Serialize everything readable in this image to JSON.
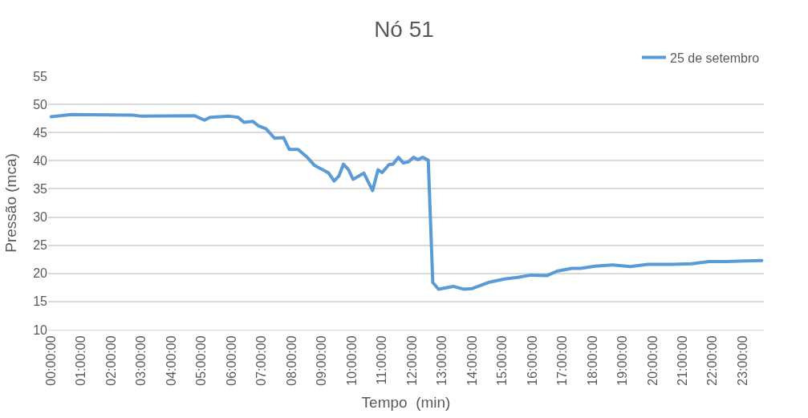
{
  "chart_data": {
    "type": "line",
    "title": "Nó 51",
    "xlabel": "Tempo  (min)",
    "ylabel": "Pressão (mca)",
    "x": [
      0,
      0.67,
      2.71,
      3.01,
      4.76,
      5.1,
      5.28,
      5.93,
      6.22,
      6.41,
      6.7,
      6.89,
      7.14,
      7.43,
      7.73,
      7.92,
      8.21,
      8.5,
      8.75,
      9.14,
      9.23,
      9.41,
      9.57,
      9.72,
      9.89,
      10.04,
      10.4,
      10.69,
      10.87,
      11.01,
      11.23,
      11.37,
      11.55,
      11.71,
      11.88,
      12.05,
      12.2,
      12.35,
      12.54,
      12.69,
      12.88,
      13.37,
      13.71,
      14.0,
      14.54,
      15.07,
      15.51,
      15.95,
      16.48,
      16.82,
      17.31,
      17.6,
      18.09,
      18.67,
      19.26,
      19.84,
      20.62,
      21.3,
      21.88,
      22.47,
      23.05,
      23.63
    ],
    "series": [
      {
        "name": "25 de setembro",
        "color": "#5b9bd5",
        "values": [
          47.8,
          48.2,
          48.1,
          47.9,
          48.0,
          47.2,
          47.7,
          47.9,
          47.7,
          46.8,
          47.0,
          46.2,
          45.7,
          44.0,
          44.1,
          42.0,
          42.0,
          40.7,
          39.2,
          38.1,
          37.8,
          36.4,
          37.3,
          39.4,
          38.4,
          36.7,
          37.8,
          34.7,
          38.4,
          37.9,
          39.3,
          39.4,
          40.6,
          39.6,
          39.8,
          40.6,
          40.2,
          40.6,
          40.1,
          18.4,
          17.2,
          17.7,
          17.2,
          17.3,
          18.4,
          19.0,
          19.3,
          19.7,
          19.6,
          20.4,
          20.9,
          20.9,
          21.3,
          21.5,
          21.2,
          21.6,
          21.6,
          21.7,
          22.1,
          22.1,
          22.2,
          22.3
        ]
      }
    ],
    "xlim": [
      -0.1,
      23.7
    ],
    "xticks": [
      {
        "value": 0,
        "label": "00:00:00"
      },
      {
        "value": 1,
        "label": "01:00:00"
      },
      {
        "value": 2,
        "label": "02:00:00"
      },
      {
        "value": 3,
        "label": "03:00:00"
      },
      {
        "value": 4,
        "label": "04:00:00"
      },
      {
        "value": 5,
        "label": "05:00:00"
      },
      {
        "value": 6,
        "label": "06:00:00"
      },
      {
        "value": 7,
        "label": "07:00:00"
      },
      {
        "value": 8,
        "label": "08:00:00"
      },
      {
        "value": 9,
        "label": "09:00:00"
      },
      {
        "value": 10,
        "label": "10:00:00"
      },
      {
        "value": 11,
        "label": "11:00:00"
      },
      {
        "value": 12,
        "label": "12:00:00"
      },
      {
        "value": 13,
        "label": "13:00:00"
      },
      {
        "value": 14,
        "label": "14:00:00"
      },
      {
        "value": 15,
        "label": "15:00:00"
      },
      {
        "value": 16,
        "label": "16:00:00"
      },
      {
        "value": 17,
        "label": "17:00:00"
      },
      {
        "value": 18,
        "label": "18:00:00"
      },
      {
        "value": 19,
        "label": "19:00:00"
      },
      {
        "value": 20,
        "label": "20:00:00"
      },
      {
        "value": 21,
        "label": "21:00:00"
      },
      {
        "value": 22,
        "label": "22:00:00"
      },
      {
        "value": 23,
        "label": "23:00:00"
      }
    ],
    "ylim": [
      10,
      55
    ],
    "yticks": [
      10,
      15,
      20,
      25,
      30,
      35,
      40,
      45,
      50,
      55
    ],
    "grid": "y",
    "legend": "top right",
    "marker": "none",
    "line_style": "solid"
  }
}
